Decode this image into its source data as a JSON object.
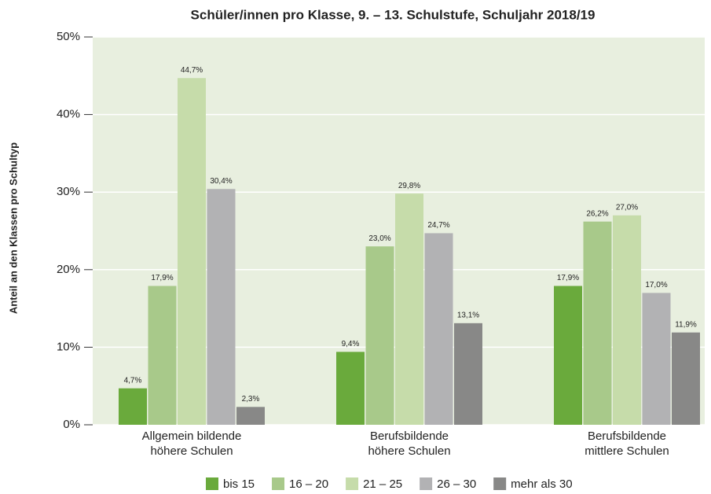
{
  "chart_data": {
    "type": "bar",
    "title": "Schüler/innen pro Klasse, 9. – 13. Schulstufe, Schuljahr 2018/19",
    "y_label": "Anteil an den Klassen pro Schultyp",
    "categories": [
      "Allgemein bildende\nhöhere Schulen",
      "Berufsbildende\nhöhere Schulen",
      "Berufsbildende\nmittlere Schulen"
    ],
    "series": [
      {
        "name": "bis 15",
        "color": "#6aaa3c",
        "values": [
          4.7,
          9.4,
          17.9
        ],
        "value_labels": [
          "4,7%",
          "9,4%",
          "17,9%"
        ]
      },
      {
        "name": "16 – 20",
        "color": "#a8c98a",
        "values": [
          17.9,
          23.0,
          26.2
        ],
        "value_labels": [
          "17,9%",
          "23,0%",
          "26,2%"
        ]
      },
      {
        "name": "21 – 25",
        "color": "#c6dcaa",
        "values": [
          44.7,
          29.8,
          27.0
        ],
        "value_labels": [
          "44,7%",
          "29,8%",
          "27,0%"
        ]
      },
      {
        "name": "26 – 30",
        "color": "#b2b2b4",
        "values": [
          30.4,
          24.7,
          17.0
        ],
        "value_labels": [
          "30,4%",
          "24,7%",
          "17,0%"
        ]
      },
      {
        "name": "mehr als 30",
        "color": "#888887",
        "values": [
          2.3,
          13.1,
          11.9
        ],
        "value_labels": [
          "2,3%",
          "13,1%",
          "11,9%"
        ]
      }
    ],
    "ylim": [
      0,
      50
    ],
    "yticks": [
      {
        "value": 0,
        "label": "0%"
      },
      {
        "value": 10,
        "label": "10%"
      },
      {
        "value": 20,
        "label": "20%"
      },
      {
        "value": 30,
        "label": "30%"
      },
      {
        "value": 40,
        "label": "40%"
      },
      {
        "value": 50,
        "label": "50%"
      }
    ],
    "grid": true,
    "legend": "bottom"
  }
}
